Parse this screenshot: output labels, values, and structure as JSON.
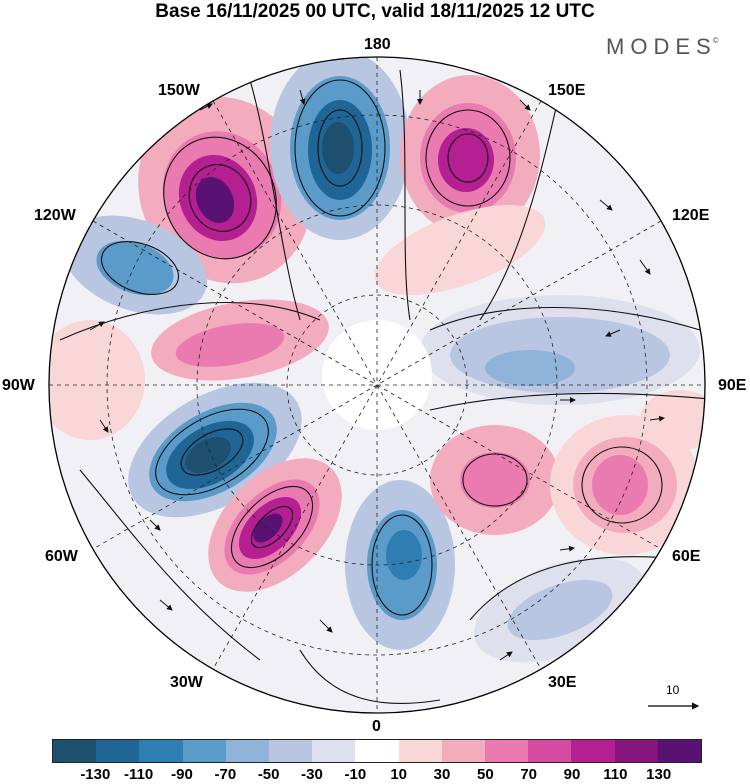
{
  "title": "Base 16/11/2025 00 UTC, valid 18/11/2025 12 UTC",
  "brand": {
    "name": "MODES",
    "mark": "©"
  },
  "longitude_labels": {
    "lon_180": "180",
    "lon_150W": "150W",
    "lon_150E": "150E",
    "lon_120W": "120W",
    "lon_120E": "120E",
    "lon_90W": "90W",
    "lon_90E": "90E",
    "lon_60W": "60W",
    "lon_60E": "60E",
    "lon_30W": "30W",
    "lon_30E": "30E",
    "lon_0": "0"
  },
  "reference_vector": {
    "label": "10"
  },
  "colorbar": {
    "colors": [
      "#1d4f6f",
      "#1f6595",
      "#2e7eb4",
      "#5a9bc9",
      "#8fb3d9",
      "#b9c6e1",
      "#dfe0ee",
      "#ffffff",
      "#f9d6d8",
      "#f3acbd",
      "#ea7bb0",
      "#d84ba3",
      "#b41f92",
      "#84167e",
      "#5a1174"
    ],
    "tick_labels": [
      "-130",
      "-110",
      "-90",
      "-70",
      "-50",
      "-30",
      "-10",
      "10",
      "30",
      "50",
      "70",
      "90",
      "110",
      "130"
    ]
  }
}
